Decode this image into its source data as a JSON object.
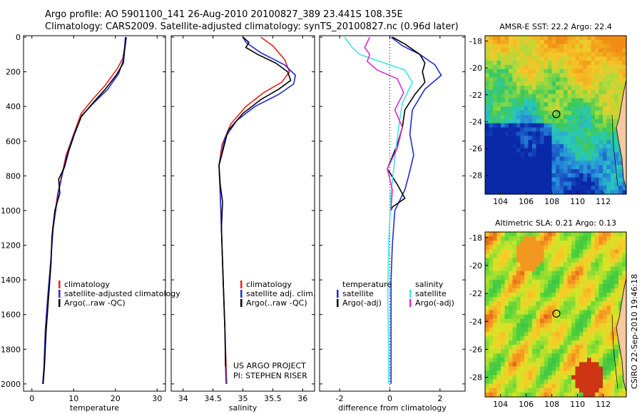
{
  "header": {
    "line1": "Argo profile: AO 5901100_141 26-Aug-2010 20100827_389 23.441S 108.35E",
    "line2": "Climatology: CARS2009. Satellite-adjusted climatology: synTS_20100827.nc (0.96d later)"
  },
  "colors": {
    "climatology": "#e8211d",
    "satellite": "#1f2bd6",
    "argo": "#000000",
    "sal_satellite": "#3ee6e6",
    "sal_argo": "#e02ad8"
  },
  "chart_data": [
    {
      "name": "temperature-profile",
      "type": "line",
      "xlabel": "temperature",
      "xlim": [
        -2,
        32
      ],
      "ylim": [
        2050,
        0
      ],
      "xticks": [
        "0",
        "10",
        "20",
        "30"
      ],
      "yticks": [
        "0",
        "200",
        "400",
        "600",
        "800",
        "1000",
        "1200",
        "1400",
        "1600",
        "1800",
        "2000"
      ],
      "legend": [
        "climatology",
        "satellite-adjusted climatology",
        "Argo(..raw -QC)"
      ],
      "series": [
        {
          "name": "climatology",
          "color": "#e8211d",
          "x": [
            22.4,
            22.3,
            21.8,
            20.5,
            17.5,
            14.5,
            11.8,
            10,
            8.2,
            7.3,
            6.2,
            5.0,
            4.5,
            3.8,
            3.2,
            2.9,
            2.6
          ],
          "y": [
            0,
            50,
            120,
            180,
            280,
            360,
            440,
            560,
            680,
            780,
            900,
            1100,
            1300,
            1500,
            1700,
            1900,
            2000
          ]
        },
        {
          "name": "satellite-adjusted climatology",
          "color": "#1f2bd6",
          "x": [
            22.4,
            22.2,
            21.8,
            20.8,
            18.2,
            14.8,
            12.0,
            10.1,
            8.4,
            7.4,
            6.3,
            5.1,
            4.5,
            3.8,
            3.2,
            2.9,
            2.6
          ],
          "y": [
            0,
            60,
            140,
            210,
            300,
            380,
            450,
            560,
            680,
            780,
            900,
            1100,
            1300,
            1500,
            1700,
            1900,
            2000
          ]
        },
        {
          "name": "Argo(..raw -QC)",
          "color": "#000000",
          "x": [
            22.6,
            22.2,
            21.9,
            20.2,
            17.6,
            14.6,
            11.8,
            10.2,
            8.8,
            7.8,
            6.4,
            6.7,
            5.5,
            4.8,
            4.6,
            4.0,
            3.4,
            3.0,
            2.7
          ],
          "y": [
            0,
            80,
            150,
            220,
            300,
            380,
            460,
            560,
            660,
            750,
            820,
            900,
            1000,
            1150,
            1300,
            1500,
            1700,
            1900,
            2000
          ]
        }
      ]
    },
    {
      "name": "salinity-profile",
      "type": "line",
      "xlabel": "salinity",
      "xlim": [
        33.8,
        36.2
      ],
      "ylim": [
        2050,
        0
      ],
      "xticks": [
        "34",
        "34.5",
        "35",
        "35.5",
        "36"
      ],
      "legend": [
        "climatology",
        "satellite adj. clim.",
        "Argo(..raw -QC)"
      ],
      "annotation": [
        "US ARGO PROJECT",
        "PI: STEPHEN RISER"
      ],
      "series": [
        {
          "name": "climatology",
          "color": "#e8211d",
          "x": [
            35.3,
            35.5,
            35.7,
            35.78,
            35.65,
            35.35,
            35.05,
            34.8,
            34.65,
            34.6,
            34.62,
            34.64,
            34.66,
            34.68,
            34.7,
            34.72,
            34.73
          ],
          "y": [
            0,
            50,
            130,
            200,
            260,
            320,
            400,
            500,
            620,
            740,
            900,
            1100,
            1300,
            1500,
            1700,
            1900,
            2000
          ]
        },
        {
          "name": "satellite adj. clim.",
          "color": "#1f2bd6",
          "x": [
            35.0,
            35.05,
            35.3,
            35.7,
            35.88,
            35.85,
            35.6,
            35.2,
            34.9,
            34.7,
            34.6,
            34.62,
            34.64,
            34.66,
            34.68,
            34.7,
            34.71,
            34.72
          ],
          "y": [
            0,
            30,
            90,
            160,
            220,
            270,
            330,
            400,
            480,
            580,
            740,
            900,
            1100,
            1300,
            1500,
            1700,
            1900,
            2000
          ]
        },
        {
          "name": "Argo(..raw -QC)",
          "color": "#000000",
          "x": [
            35.0,
            35.1,
            35.05,
            35.25,
            35.55,
            35.75,
            35.8,
            35.6,
            35.3,
            35.0,
            34.75,
            34.6,
            34.62,
            34.66,
            34.64,
            34.66,
            34.68,
            34.7,
            34.71
          ],
          "y": [
            0,
            30,
            60,
            100,
            150,
            200,
            250,
            300,
            360,
            440,
            540,
            740,
            850,
            950,
            1100,
            1300,
            1500,
            1700,
            1900
          ]
        }
      ]
    },
    {
      "name": "difference-profile",
      "type": "line",
      "xlabel": "difference from climatology",
      "xlim": [
        -2.8,
        3.0
      ],
      "ylim": [
        2050,
        0
      ],
      "xticks": [
        "-2",
        "0",
        "2"
      ],
      "legend_temperature": [
        "temperature",
        "satellite",
        "Argo(-adj)"
      ],
      "legend_salinity": [
        "salinity",
        "satellite",
        "Argo(-adj)"
      ],
      "series": [
        {
          "name": "temperature satellite",
          "color": "#1f2bd6",
          "x": [
            0.05,
            0.5,
            1.2,
            1.8,
            2.05,
            1.4,
            0.9,
            0.8,
            0.95,
            0.75,
            0.6,
            0.4,
            0.2,
            0.1,
            0.05,
            0.05,
            0.05,
            0.05
          ],
          "y": [
            0,
            50,
            100,
            160,
            220,
            300,
            420,
            560,
            680,
            800,
            880,
            940,
            1000,
            1200,
            1400,
            1600,
            1800,
            2000
          ]
        },
        {
          "name": "temperature Argo(-adj)",
          "color": "#000000",
          "x": [
            0.1,
            0.6,
            1.2,
            1.4,
            1.3,
            1.4,
            1.0,
            0.6,
            0.5,
            0.3,
            -0.1,
            0.3,
            0.6,
            0.3,
            0.1,
            0.05
          ],
          "y": [
            0,
            40,
            100,
            150,
            200,
            260,
            330,
            420,
            520,
            620,
            760,
            850,
            930,
            960,
            980,
            1000
          ]
        },
        {
          "name": "salinity satellite",
          "color": "#3ee6e6",
          "x": [
            -1.8,
            -1.5,
            -1.2,
            -0.4,
            0.6,
            0.9,
            0.5,
            0.35,
            0.2,
            0.05,
            -0.05,
            -0.08,
            -0.05,
            -0.05
          ],
          "y": [
            0,
            60,
            100,
            140,
            190,
            260,
            380,
            520,
            700,
            900,
            1200,
            1500,
            1800,
            2000
          ]
        },
        {
          "name": "salinity Argo(-adj)",
          "color": "#e02ad8",
          "x": [
            -0.8,
            -1.0,
            -0.8,
            -0.9,
            -0.5,
            0.3,
            0.55,
            0.2,
            0.5,
            0.3,
            -0.1,
            0.1,
            0.05
          ],
          "y": [
            0,
            60,
            100,
            140,
            190,
            240,
            320,
            420,
            520,
            640,
            760,
            880,
            1000
          ]
        }
      ]
    },
    {
      "name": "sst-map",
      "type": "heatmap",
      "title": "AMSR-E SST: 22.2 Argo: 22.4",
      "xlim": [
        102.8,
        113.8
      ],
      "ylim": [
        -29.4,
        -17.6
      ],
      "xticks": [
        "104",
        "106",
        "108",
        "110",
        "112"
      ],
      "yticks": [
        "-18",
        "-20",
        "-22",
        "-24",
        "-26",
        "-28"
      ],
      "marker": {
        "lon": 108.35,
        "lat": -23.44
      }
    },
    {
      "name": "sla-map",
      "type": "heatmap",
      "title": "Altimetric SLA: 0.21 Argo: 0.13",
      "xlim": [
        102.8,
        113.8
      ],
      "ylim": [
        -29.4,
        -17.6
      ],
      "xticks": [
        "104",
        "106",
        "108",
        "110",
        "112"
      ],
      "yticks": [
        "-18",
        "-20",
        "-22",
        "-24",
        "-26",
        "-28"
      ],
      "marker": {
        "lon": 108.35,
        "lat": -23.44
      }
    }
  ],
  "credit": "CSIRO 22-Sep-2010 19:46:18"
}
